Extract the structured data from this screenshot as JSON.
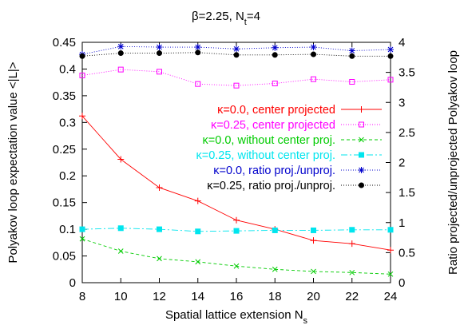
{
  "chart_data": {
    "type": "line",
    "title": "β=2.25, N",
    "title_sub": "t",
    "title_suffix": "=4",
    "xlabel": "Spatial lattice extension N",
    "xlabel_sub": "s",
    "ylabel_left": "Polyakov loop expectation value <|L|>",
    "ylabel_right": "Ratio projected/unprojected Polyakov loop",
    "x": [
      8,
      10,
      12,
      14,
      16,
      18,
      20,
      22,
      24
    ],
    "x_ticks": [
      "8",
      "10",
      "12",
      "14",
      "16",
      "18",
      "20",
      "22",
      "24"
    ],
    "xlim": [
      8,
      24
    ],
    "ylim_left": [
      0,
      0.45
    ],
    "yticks_left": [
      "0",
      "0.05",
      "0.1",
      "0.15",
      "0.2",
      "0.25",
      "0.3",
      "0.35",
      "0.4",
      "0.45"
    ],
    "ylim_right": [
      0,
      4
    ],
    "yticks_right": [
      "0",
      "0.5",
      "1",
      "1.5",
      "2",
      "2.5",
      "3",
      "3.5",
      "4"
    ],
    "grid": false,
    "legend_position": "right-middle",
    "series": [
      {
        "name": "κ=0.0, center projected",
        "axis": "left",
        "color": "#ff0000",
        "marker": "plus",
        "dash": "solid",
        "values": [
          0.312,
          0.231,
          0.178,
          0.153,
          0.117,
          0.1,
          0.079,
          0.073,
          0.061
        ]
      },
      {
        "name": "κ=0.25, center projected",
        "axis": "left",
        "color": "#ff00ff",
        "marker": "open-square",
        "dash": "dotted",
        "values": [
          0.388,
          0.399,
          0.395,
          0.372,
          0.369,
          0.373,
          0.381,
          0.376,
          0.38
        ]
      },
      {
        "name": "κ=0.0, without center proj.",
        "axis": "left",
        "color": "#00cc00",
        "marker": "x",
        "dash": "dashed",
        "values": [
          0.082,
          0.059,
          0.045,
          0.039,
          0.031,
          0.025,
          0.021,
          0.019,
          0.016
        ]
      },
      {
        "name": "κ=0.25, without center proj.",
        "axis": "left",
        "color": "#00e5ee",
        "marker": "filled-square",
        "dash": "dashdot",
        "values": [
          0.1,
          0.102,
          0.1,
          0.096,
          0.097,
          0.098,
          0.098,
          0.099,
          0.099
        ]
      },
      {
        "name": "κ=0.0, ratio proj./unproj.",
        "axis": "right",
        "color": "#0000cc",
        "marker": "star",
        "dash": "dotted",
        "values": [
          3.8,
          3.93,
          3.92,
          3.92,
          3.89,
          3.91,
          3.92,
          3.86,
          3.88
        ]
      },
      {
        "name": "κ=0.25, ratio proj./unproj.",
        "axis": "right",
        "color": "#000000",
        "marker": "filled-circle",
        "dash": "dotted",
        "values": [
          3.77,
          3.82,
          3.82,
          3.83,
          3.79,
          3.79,
          3.8,
          3.77,
          3.77
        ]
      }
    ]
  }
}
